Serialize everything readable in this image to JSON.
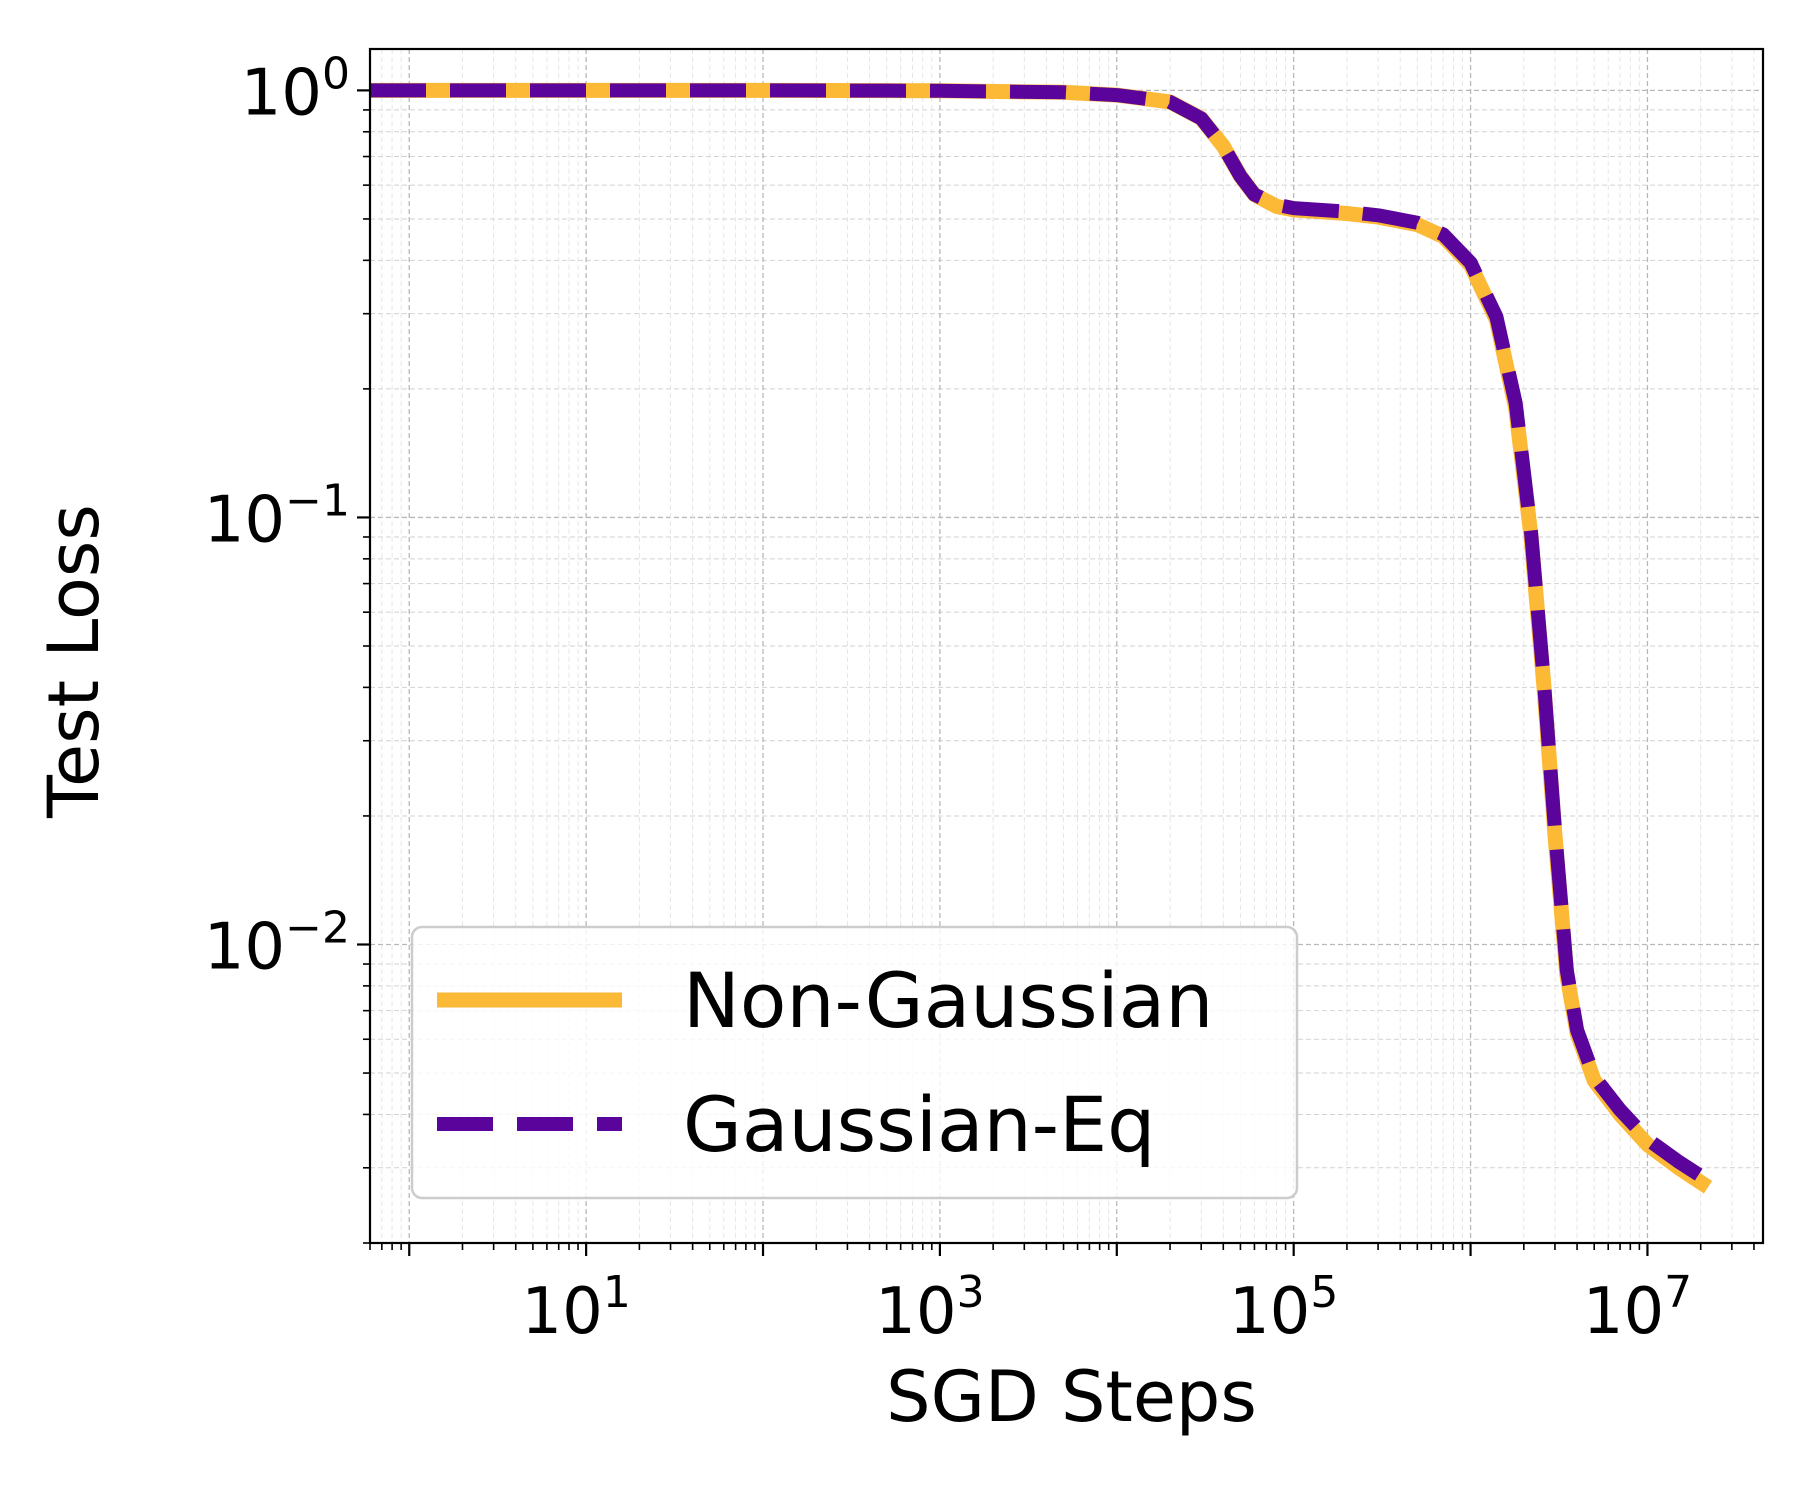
{
  "chart_data": {
    "type": "line",
    "title": "",
    "xlabel": "SGD Steps",
    "ylabel": "Test Loss",
    "xscale": "log",
    "yscale": "log",
    "xlim": [
      0.6,
      45000000
    ],
    "ylim": [
      0.002,
      1.25
    ],
    "grid": true,
    "legend_position": "bottom-left",
    "x_ticks": [
      {
        "base": "10",
        "exp": "1",
        "value": 10
      },
      {
        "base": "10",
        "exp": "3",
        "value": 1000
      },
      {
        "base": "10",
        "exp": "5",
        "value": 100000
      },
      {
        "base": "10",
        "exp": "7",
        "value": 10000000
      }
    ],
    "y_ticks": [
      {
        "base": "10",
        "exp": "0",
        "value": 1
      },
      {
        "base": "10",
        "exp": "−1",
        "value": 0.1
      },
      {
        "base": "10",
        "exp": "−2",
        "value": 0.01
      }
    ],
    "series": [
      {
        "name": "Non-Gaussian",
        "color": "#FBB935",
        "style": "solid",
        "x": [
          0.6,
          1,
          10,
          100,
          1000,
          5000,
          10000,
          20000,
          30000,
          40000,
          50000,
          60000,
          80000,
          100000,
          200000,
          300000,
          500000,
          700000,
          1000000,
          1400000,
          1800000,
          2200000,
          2600000,
          3000000,
          3500000,
          4000000,
          5000000,
          7000000,
          10000000,
          15000000,
          22000000
        ],
        "y": [
          1.0,
          1.0,
          1.0,
          1.0,
          0.998,
          0.99,
          0.975,
          0.94,
          0.86,
          0.74,
          0.63,
          0.57,
          0.535,
          0.525,
          0.515,
          0.505,
          0.485,
          0.455,
          0.39,
          0.29,
          0.18,
          0.09,
          0.04,
          0.018,
          0.0085,
          0.0062,
          0.0048,
          0.004,
          0.0034,
          0.003,
          0.0027
        ]
      },
      {
        "name": "Gaussian-Eq",
        "color": "#5B049C",
        "style": "dashed",
        "x": [
          0.6,
          1,
          10,
          100,
          1000,
          5000,
          10000,
          20000,
          30000,
          40000,
          50000,
          60000,
          80000,
          100000,
          200000,
          300000,
          500000,
          700000,
          1000000,
          1400000,
          1800000,
          2200000,
          2600000,
          3000000,
          3500000,
          4000000,
          5000000,
          7000000,
          10000000,
          15000000,
          22000000
        ],
        "y": [
          1.0,
          1.0,
          1.0,
          1.0,
          0.998,
          0.99,
          0.975,
          0.94,
          0.86,
          0.74,
          0.63,
          0.57,
          0.54,
          0.53,
          0.52,
          0.51,
          0.49,
          0.46,
          0.395,
          0.295,
          0.185,
          0.092,
          0.041,
          0.0185,
          0.0087,
          0.0063,
          0.0049,
          0.0041,
          0.0035,
          0.0031,
          0.0028
        ]
      }
    ]
  }
}
